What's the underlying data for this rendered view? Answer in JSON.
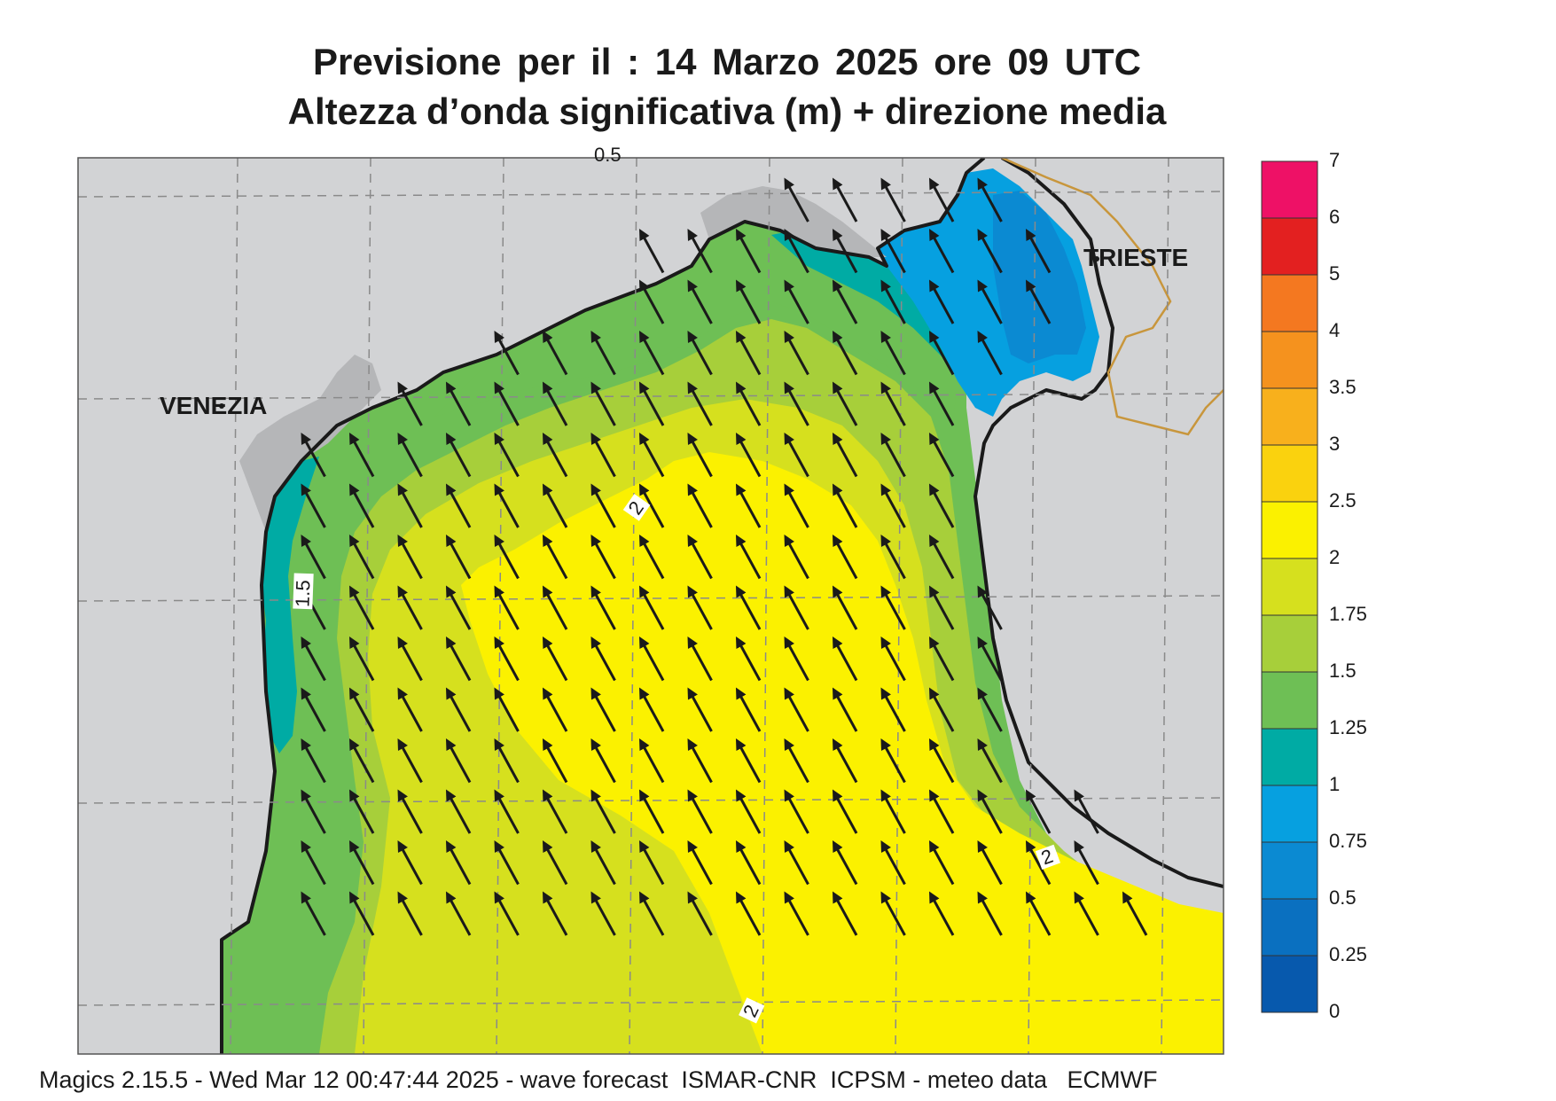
{
  "title": {
    "line1": "Previsione per il  :  14   Marzo   2025   ore 09 UTC",
    "line2": "Altezza d’onda significativa (m) + direzione media"
  },
  "cities": {
    "venezia": "VENEZIA",
    "trieste": "TRIESTE"
  },
  "contour_labels": {
    "top": "0.5",
    "west": "1.5",
    "center": "2",
    "southeast": "2",
    "south": "2"
  },
  "legend": {
    "levels": [
      "7",
      "6",
      "5",
      "4",
      "3.5",
      "3",
      "2.5",
      "2",
      "1.75",
      "1.5",
      "1.25",
      "1",
      "0.75",
      "0.5",
      "0.25",
      "0"
    ],
    "colors": [
      "#ee1166",
      "#e32020",
      "#f47820",
      "#f5921e",
      "#f8b01c",
      "#fad20e",
      "#fbf100",
      "#d6e01e",
      "#a7cf3a",
      "#6ebf55",
      "#00aba4",
      "#06a0e0",
      "#0b8ad2",
      "#0a70c0",
      "#0759ad"
    ]
  },
  "field_colors": {
    "land": "#d2d3d5",
    "coast": "#b5b6b8",
    "border": "#c8963c"
  },
  "wave_direction": "north-west",
  "footer": "Magics 2.15.5 - Wed Mar 12 00:47:44 2025 - wave forecast  ISMAR-CNR  ICPSM - meteo data   ECMWF"
}
